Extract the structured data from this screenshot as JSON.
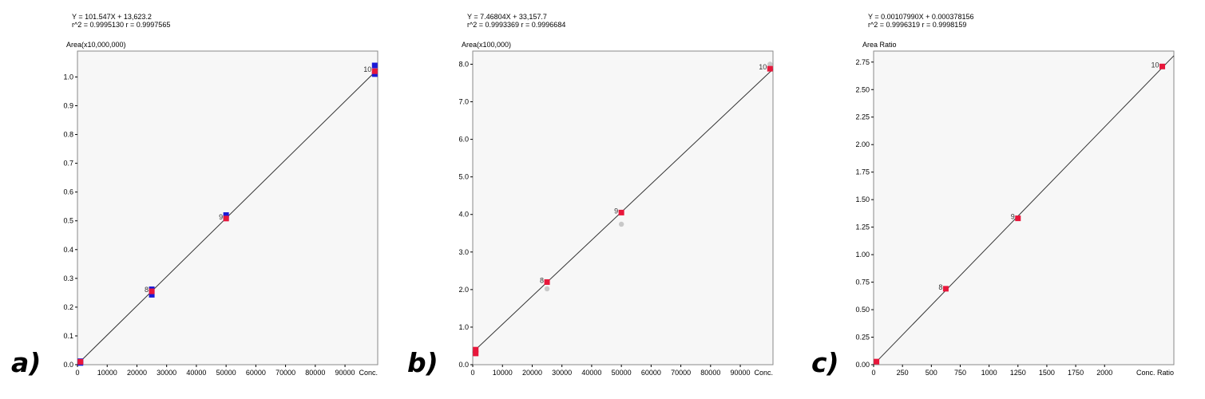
{
  "figure_labels": [
    "a)",
    "b)",
    "c)"
  ],
  "chart_data": [
    {
      "type": "scatter",
      "equation": "Y = 101.547X + 13,623.2",
      "stats": "r^2 = 0.9995130   r = 0.9997565",
      "ylabel": "Area(x10,000,000)",
      "xlabel": "Conc.",
      "xlim": [
        0,
        101000
      ],
      "ylim": [
        0,
        1.09
      ],
      "xticks": [
        0,
        10000,
        20000,
        30000,
        40000,
        50000,
        60000,
        70000,
        80000,
        90000
      ],
      "xtick_labels": [
        "0",
        "10000",
        "20000",
        "30000",
        "40000",
        "50000",
        "60000",
        "70000",
        "80000",
        "90000"
      ],
      "yticks": [
        0,
        0.1,
        0.2,
        0.3,
        0.4,
        0.5,
        0.6,
        0.7,
        0.8,
        0.9,
        1.0
      ],
      "ytick_labels": [
        "0.0",
        "0.1",
        "0.2",
        "0.3",
        "0.4",
        "0.5",
        "0.6",
        "0.7",
        "0.8",
        "0.9",
        "1.0"
      ],
      "fit_line": {
        "x": [
          0,
          101000
        ],
        "y": [
          0.0014,
          1.027
        ]
      },
      "series": [
        {
          "color": "#1a1ad6",
          "marker": "square",
          "points": [
            [
              1000,
              0.012
            ],
            [
              1000,
              0.006
            ],
            [
              25000,
              0.262
            ],
            [
              25000,
              0.243
            ],
            [
              50000,
              0.52
            ],
            [
              50000,
              0.51
            ],
            [
              100000,
              1.04
            ],
            [
              100000,
              1.01
            ]
          ]
        },
        {
          "color": "#e8173b",
          "marker": "square",
          "points": [
            [
              1000,
              0.01
            ],
            [
              25000,
              0.255
            ],
            [
              50000,
              0.508
            ],
            [
              100000,
              1.02
            ]
          ]
        }
      ],
      "point_labels": [
        {
          "text": "8",
          "x": 25000,
          "y": 0.255
        },
        {
          "text": "9",
          "x": 50000,
          "y": 0.508
        },
        {
          "text": "10",
          "x": 100000,
          "y": 1.02
        }
      ]
    },
    {
      "type": "scatter",
      "equation": "Y = 7.46804X + 33,157.7",
      "stats": "r^2 = 0.9993369   r = 0.9996684",
      "ylabel": "Area(x100,000)",
      "xlabel": "Conc.",
      "xlim": [
        0,
        101000
      ],
      "ylim": [
        0,
        8.35
      ],
      "xticks": [
        0,
        10000,
        20000,
        30000,
        40000,
        50000,
        60000,
        70000,
        80000,
        90000
      ],
      "xtick_labels": [
        "0",
        "10000",
        "20000",
        "30000",
        "40000",
        "50000",
        "60000",
        "70000",
        "80000",
        "90000"
      ],
      "yticks": [
        0,
        1,
        2,
        3,
        4,
        5,
        6,
        7,
        8
      ],
      "ytick_labels": [
        "0.0",
        "1.0",
        "2.0",
        "3.0",
        "4.0",
        "5.0",
        "6.0",
        "7.0",
        "8.0"
      ],
      "fit_line": {
        "x": [
          0,
          101000
        ],
        "y": [
          0.33,
          7.87
        ]
      },
      "series": [
        {
          "color": "#c8c8c8",
          "marker": "circle",
          "points": [
            [
              1000,
              0.3
            ],
            [
              25000,
              2.02
            ],
            [
              50000,
              3.74
            ],
            [
              100000,
              8.0
            ]
          ]
        },
        {
          "color": "#e8173b",
          "marker": "square",
          "points": [
            [
              1000,
              0.4
            ],
            [
              1000,
              0.3
            ],
            [
              25000,
              2.2
            ],
            [
              50000,
              4.05
            ],
            [
              100000,
              7.88
            ]
          ]
        }
      ],
      "point_labels": [
        {
          "text": "8",
          "x": 25000,
          "y": 2.2
        },
        {
          "text": "9",
          "x": 50000,
          "y": 4.05
        },
        {
          "text": "10",
          "x": 100000,
          "y": 7.88
        }
      ]
    },
    {
      "type": "scatter",
      "equation": "Y = 0.00107990X + 0.000378156",
      "stats": "r^2 = 0.9996319   r = 0.9998159",
      "ylabel": "Area Ratio",
      "xlabel": "Conc. Ratio",
      "xlim": [
        0,
        2600
      ],
      "ylim": [
        0,
        2.85
      ],
      "xticks": [
        0,
        250,
        500,
        750,
        1000,
        1250,
        1500,
        1750,
        2000
      ],
      "xtick_labels": [
        "0",
        "250",
        "500",
        "750",
        "1000",
        "1250",
        "1500",
        "1750",
        "2000"
      ],
      "yticks": [
        0,
        0.25,
        0.5,
        0.75,
        1.0,
        1.25,
        1.5,
        1.75,
        2.0,
        2.25,
        2.5,
        2.75
      ],
      "ytick_labels": [
        "0.00",
        "0.25",
        "0.50",
        "0.75",
        "1.00",
        "1.25",
        "1.50",
        "1.75",
        "2.00",
        "2.25",
        "2.50",
        "2.75"
      ],
      "fit_line": {
        "x": [
          0,
          2600
        ],
        "y": [
          0.0004,
          2.808
        ]
      },
      "series": [
        {
          "color": "#e8173b",
          "marker": "square",
          "points": [
            [
              25,
              0.028
            ],
            [
              625,
              0.69
            ],
            [
              1250,
              1.33
            ],
            [
              2500,
              2.71
            ]
          ]
        }
      ],
      "point_labels": [
        {
          "text": "8",
          "x": 625,
          "y": 0.69
        },
        {
          "text": "9",
          "x": 1250,
          "y": 1.33
        },
        {
          "text": "10",
          "x": 2500,
          "y": 2.71
        }
      ]
    }
  ]
}
